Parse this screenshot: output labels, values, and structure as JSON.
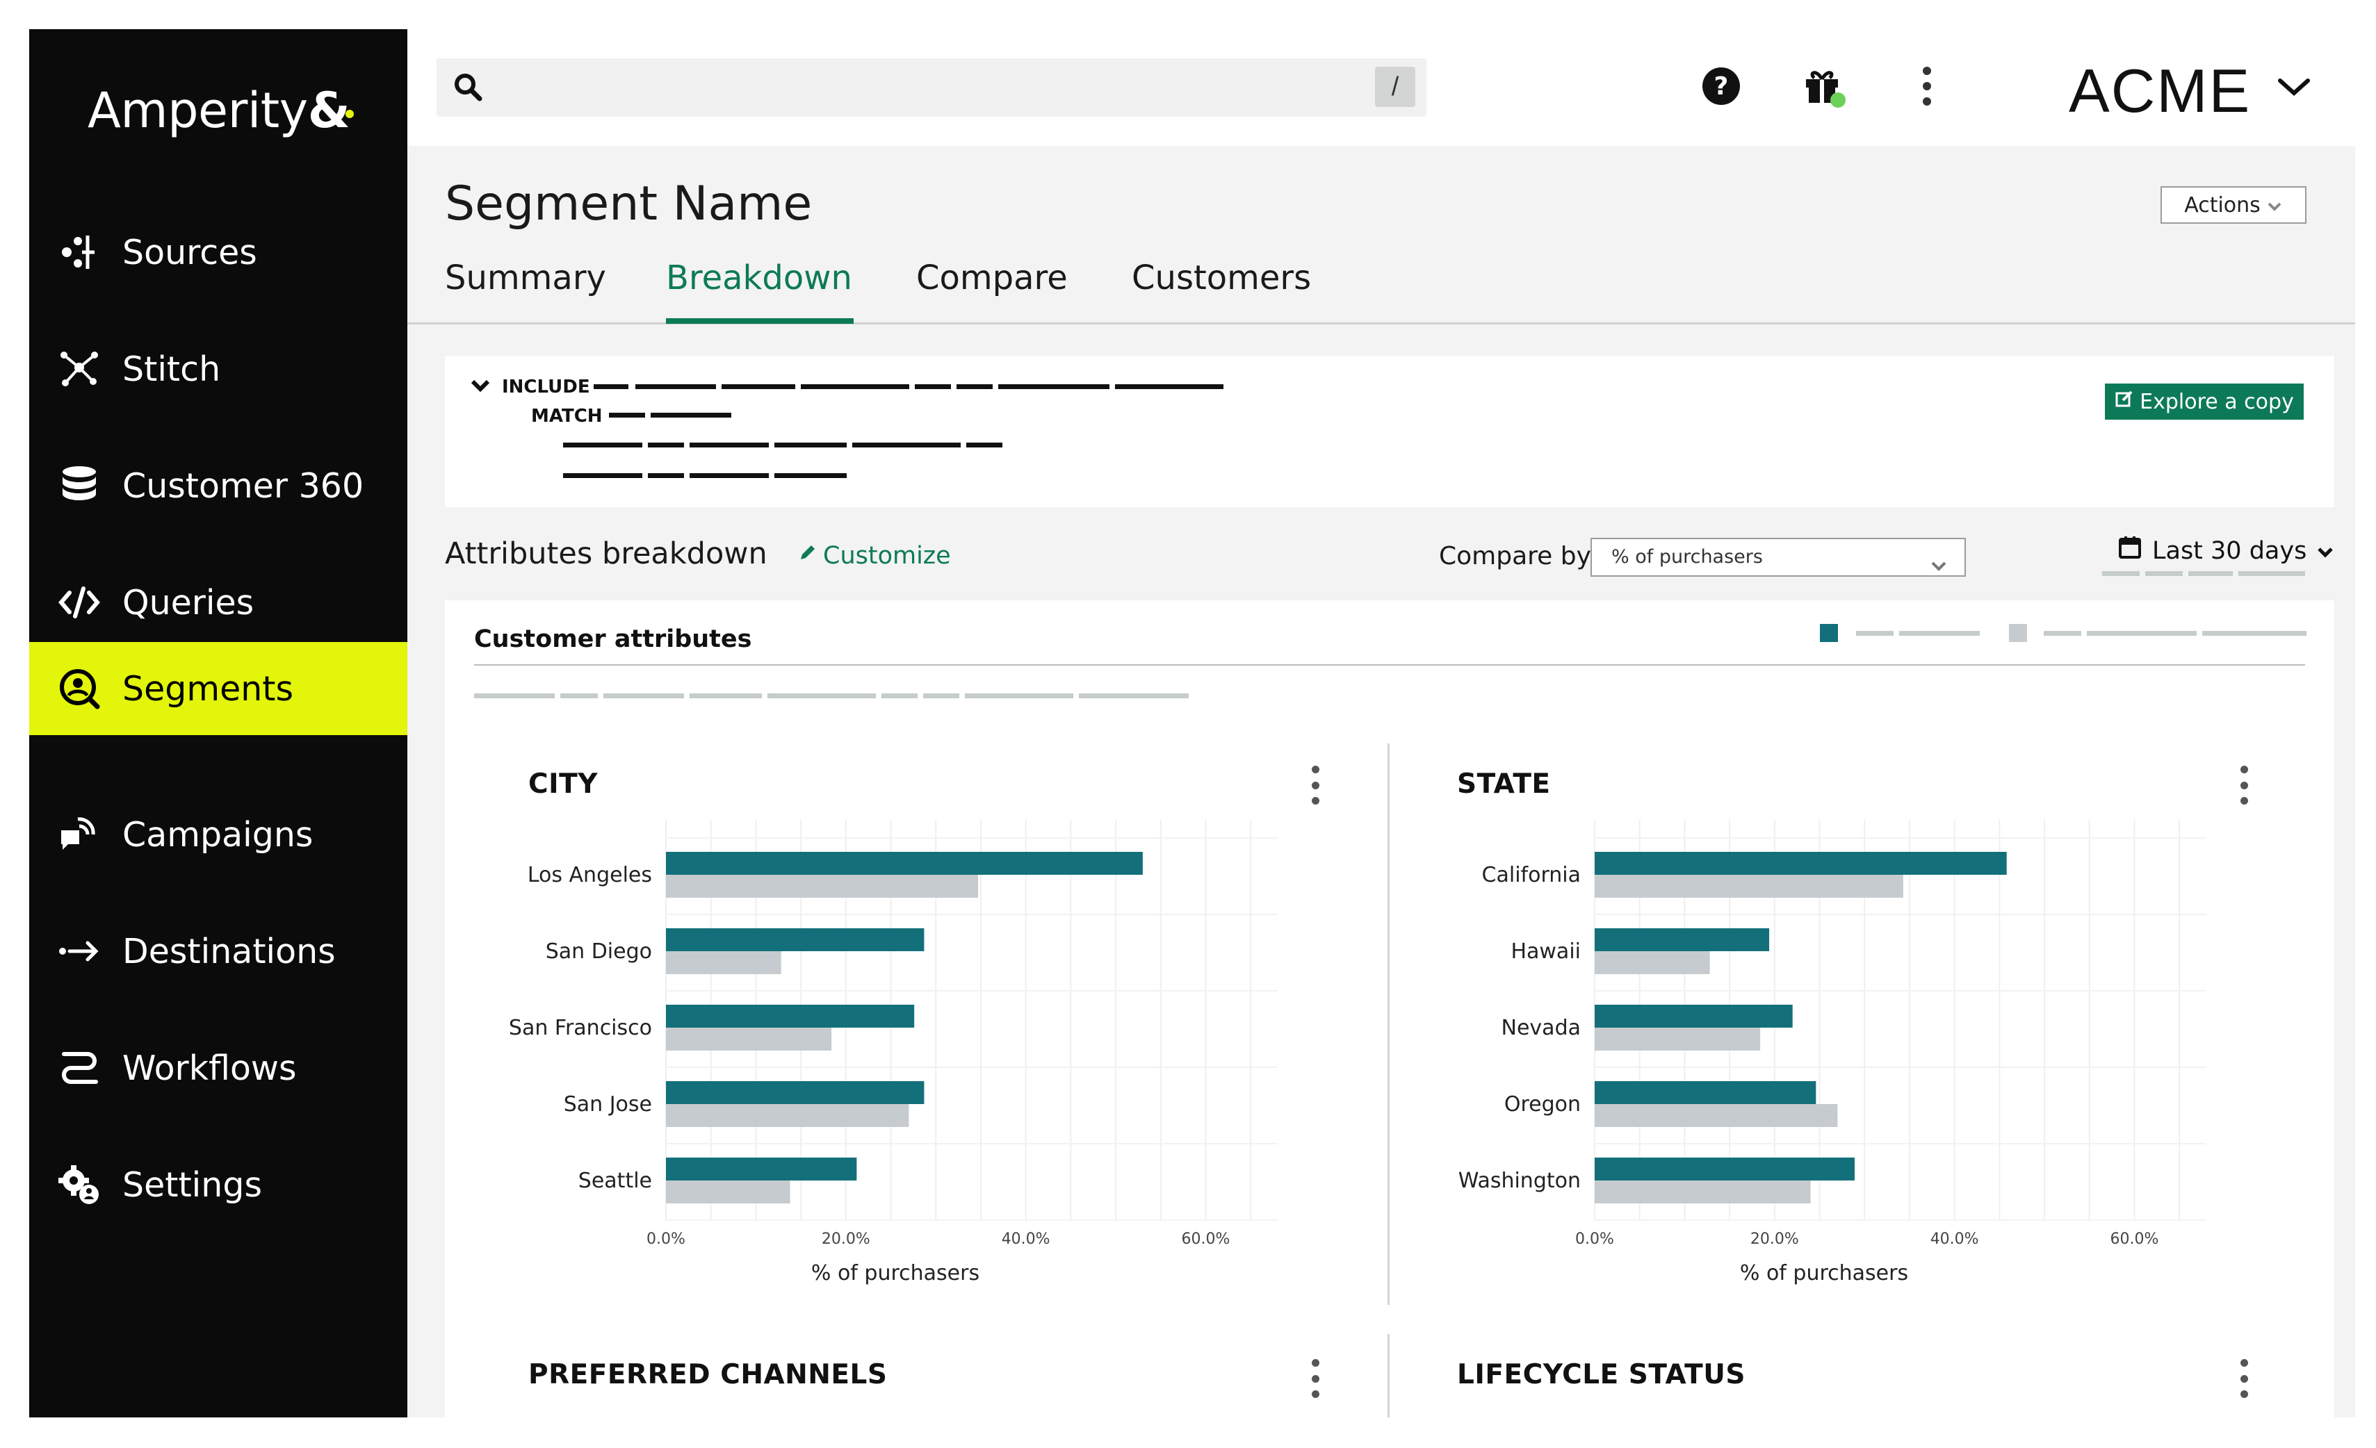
{
  "brand": {
    "logo_text": "Amperity",
    "logo_symbol": "&",
    "accent_color": "#e3f50a",
    "primary_color": "#0d7a57",
    "series_primary_color": "#13707a",
    "series_compare_color": "#c6cbd0"
  },
  "sidebar": {
    "items": [
      {
        "label": "Sources",
        "icon": "sources-icon"
      },
      {
        "label": "Stitch",
        "icon": "stitch-icon"
      },
      {
        "label": "Customer 360",
        "icon": "database-icon"
      },
      {
        "label": "Queries",
        "icon": "code-icon"
      },
      {
        "label": "Segments",
        "icon": "segments-icon",
        "active": true
      },
      {
        "label": "Campaigns",
        "icon": "campaigns-icon"
      },
      {
        "label": "Destinations",
        "icon": "destinations-icon"
      },
      {
        "label": "Workflows",
        "icon": "workflows-icon"
      },
      {
        "label": "Settings",
        "icon": "settings-icon"
      }
    ]
  },
  "topbar": {
    "search_shortcut": "/",
    "icons": [
      "help-icon",
      "gift-icon",
      "more-vertical-icon"
    ],
    "org_name": "ACME"
  },
  "page": {
    "title": "Segment Name",
    "actions_label": "Actions",
    "tabs": [
      {
        "label": "Summary"
      },
      {
        "label": "Breakdown",
        "active": true
      },
      {
        "label": "Compare"
      },
      {
        "label": "Customers"
      }
    ]
  },
  "criteria": {
    "include_label": "INCLUDE",
    "match_label": "MATCH",
    "explore_label": "Explore a copy"
  },
  "breakdown": {
    "title": "Attributes breakdown",
    "customize_label": "Customize",
    "compare_by_label": "Compare by",
    "compare_by_value": "% of purchasers",
    "date_range": "Last 30 days",
    "card_title": "Customer attributes"
  },
  "chart_data": [
    {
      "type": "bar",
      "orientation": "horizontal",
      "title": "CITY",
      "categories": [
        "Los Angeles",
        "San Diego",
        "San Francisco",
        "San Jose",
        "Seattle"
      ],
      "series": [
        {
          "values": [
            53.0,
            28.7,
            27.6,
            28.7,
            21.2
          ]
        },
        {
          "values": [
            34.7,
            12.8,
            18.4,
            27.0,
            13.8
          ]
        }
      ],
      "xlabel": "% of purchasers",
      "xticks": [
        "0.0%",
        "20.0%",
        "40.0%",
        "60.0%"
      ],
      "xlim": [
        0,
        68
      ],
      "grid": true
    },
    {
      "type": "bar",
      "orientation": "horizontal",
      "title": "STATE",
      "categories": [
        "California",
        "Hawaii",
        "Nevada",
        "Oregon",
        "Washington"
      ],
      "series": [
        {
          "values": [
            45.8,
            19.4,
            22.0,
            24.6,
            28.9
          ]
        },
        {
          "values": [
            34.3,
            12.8,
            18.4,
            27.0,
            24.0
          ]
        }
      ],
      "xlabel": "% of purchasers",
      "xticks": [
        "0.0%",
        "20.0%",
        "40.0%",
        "60.0%"
      ],
      "xlim": [
        0,
        68
      ],
      "grid": true
    }
  ],
  "more_charts": [
    {
      "title": "PREFERRED CHANNELS"
    },
    {
      "title": "LIFECYCLE STATUS"
    }
  ]
}
